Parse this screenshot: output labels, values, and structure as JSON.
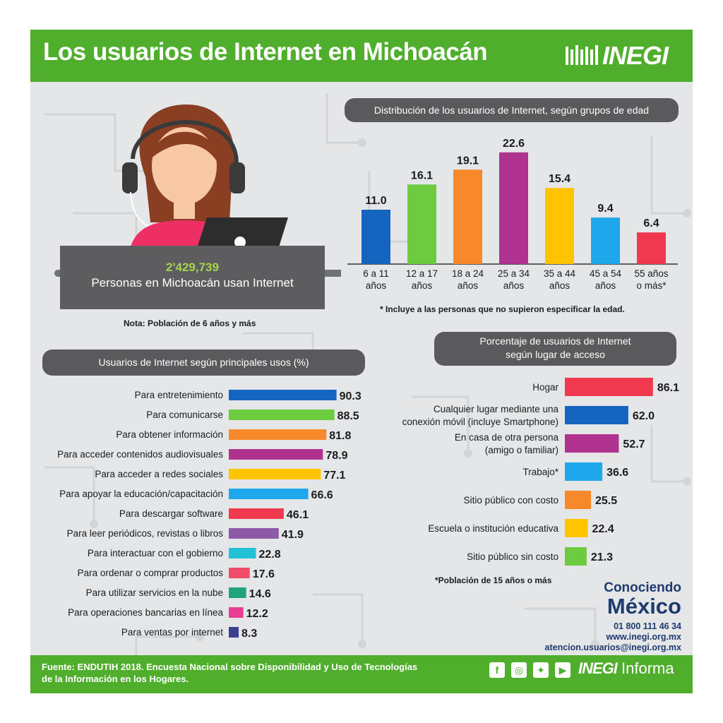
{
  "header": {
    "title": "Los usuarios de Internet en Michoacán",
    "logo_text": "INEGI"
  },
  "colors": {
    "green": "#4fae2b",
    "pill_gray": "#5a5a5c",
    "navy": "#1f3a6e",
    "count_green": "#a7d44e"
  },
  "summary": {
    "count": "2'429,739",
    "label": "Personas en Michoacán usan Internet",
    "note": "Nota: Población de 6 años y más"
  },
  "contact": {
    "line1": "Conociendo",
    "line2": "México",
    "phone": "01 800 111 46 34",
    "web": "www.inegi.org.mx",
    "email": "atencion.usuarios@inegi.org.mx"
  },
  "footer": {
    "source_line1": "Fuente: ENDUTIH 2018. Encuesta Nacional sobre Disponibilidad y Uso de Tecnologías",
    "source_line2": "de la Información en los Hogares.",
    "social_icons": [
      "facebook-icon",
      "instagram-icon",
      "twitter-icon",
      "youtube-icon"
    ],
    "brand": "INEGI",
    "brand_suffix": "Informa"
  },
  "chart_data": [
    {
      "id": "age",
      "type": "bar",
      "title": "Distribución de los usuarios de Internet, según grupos de edad",
      "categories": [
        [
          "6 a 11",
          "años"
        ],
        [
          "12 a 17",
          "años"
        ],
        [
          "18 a 24",
          "años"
        ],
        [
          "25 a 34",
          "años"
        ],
        [
          "35 a 44",
          "años"
        ],
        [
          "45 a 54",
          "años"
        ],
        [
          "55 años",
          "o más*"
        ]
      ],
      "values": [
        11.0,
        16.1,
        19.1,
        22.6,
        15.4,
        9.4,
        6.4
      ],
      "labels": [
        "11.0",
        "16.1",
        "19.1",
        "22.6",
        "15.4",
        "9.4",
        "6.4"
      ],
      "colors": [
        "#1565c0",
        "#6ccb3f",
        "#f7892a",
        "#b0328f",
        "#ffc400",
        "#1fa7ec",
        "#f0394e"
      ],
      "note": "* Incluye a las personas que no supieron especificar la edad."
    },
    {
      "id": "uses",
      "type": "bar",
      "orientation": "horizontal",
      "title": "Usuarios de Internet según principales usos (%)",
      "categories": [
        "Para entretenimiento",
        "Para comunicarse",
        "Para obtener información",
        "Para acceder contenidos audiovisuales",
        "Para acceder a redes sociales",
        "Para apoyar la educación/capacitación",
        "Para descargar software",
        "Para leer periódicos, revistas o libros",
        "Para interactuar con  el gobierno",
        "Para ordenar o comprar productos",
        "Para utilizar servicios en la nube",
        "Para operaciones bancarias en línea",
        "Para ventas por internet"
      ],
      "values": [
        90.3,
        88.5,
        81.8,
        78.9,
        77.1,
        66.6,
        46.1,
        41.9,
        22.8,
        17.6,
        14.6,
        12.2,
        8.3
      ],
      "labels": [
        "90.3",
        "88.5",
        "81.8",
        "78.9",
        "77.1",
        "66.6",
        "46.1",
        "41.9",
        "22.8",
        "17.6",
        "14.6",
        "12.2",
        "8.3"
      ],
      "colors": [
        "#1565c0",
        "#6ccb3f",
        "#f7892a",
        "#b0328f",
        "#ffc400",
        "#1fa7ec",
        "#f0394e",
        "#8e5aa8",
        "#21c1d6",
        "#f04d6b",
        "#1fa37a",
        "#ec3c92",
        "#3b3f8f"
      ]
    },
    {
      "id": "place",
      "type": "bar",
      "orientation": "horizontal",
      "title_line1": "Porcentaje de usuarios de Internet",
      "title_line2": "según lugar de acceso",
      "categories": [
        [
          "Hogar"
        ],
        [
          "Cualquier lugar mediante una",
          "conexión móvil (incluye Smartphone)"
        ],
        [
          "En casa de otra persona",
          "(amigo o familiar)"
        ],
        [
          "Trabajo*"
        ],
        [
          "Sitio público con costo"
        ],
        [
          "Escuela o institución educativa"
        ],
        [
          "Sitio público sin costo"
        ]
      ],
      "values": [
        86.1,
        62.0,
        52.7,
        36.6,
        25.5,
        22.4,
        21.3
      ],
      "labels": [
        "86.1",
        "62.0",
        "52.7",
        "36.6",
        "25.5",
        "22.4",
        "21.3"
      ],
      "colors": [
        "#f0394e",
        "#1565c0",
        "#b0328f",
        "#1fa7ec",
        "#f7892a",
        "#ffc400",
        "#6ccb3f"
      ],
      "note": "*Población de 15 años o más"
    }
  ]
}
